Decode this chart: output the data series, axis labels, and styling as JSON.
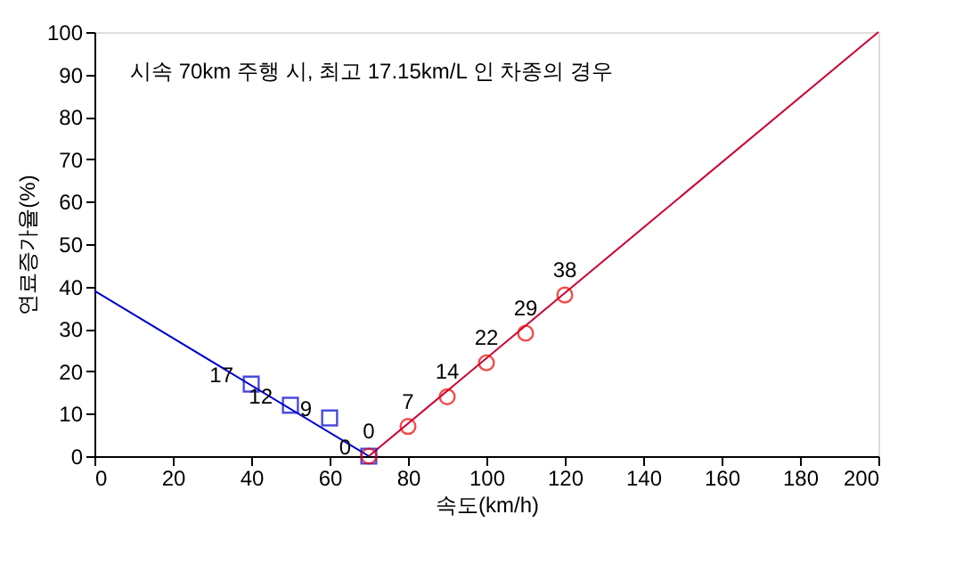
{
  "chart_data": {
    "type": "scatter",
    "xlabel": "속도(km/h)",
    "ylabel": "연료증가율(%)",
    "annotations": [
      "시속 70km 주행 시, 최고 17.15km/L 인 차종의 경우"
    ],
    "xlim": [
      0,
      200
    ],
    "ylim": [
      0,
      100
    ],
    "xticks": [
      0,
      20,
      40,
      60,
      80,
      100,
      120,
      140,
      160,
      180,
      200
    ],
    "yticks": [
      0,
      10,
      20,
      30,
      40,
      50,
      60,
      70,
      80,
      90,
      100
    ],
    "grid": false,
    "series": [
      {
        "type": "line",
        "color": "#0000cc",
        "x": [
          0,
          70
        ],
        "values": [
          39,
          0
        ],
        "marker": "none",
        "line_style": "solid"
      },
      {
        "type": "line",
        "color": "#cc0033",
        "x": [
          70,
          200
        ],
        "values": [
          0,
          100
        ],
        "marker": "none",
        "line_style": "solid"
      },
      {
        "color": "#0000cc",
        "x": [
          40,
          50,
          60,
          70
        ],
        "values": [
          17,
          12,
          9,
          0
        ],
        "value_labels": [
          "17",
          "12",
          "9",
          "0"
        ],
        "marker": "square"
      },
      {
        "color": "#ee0000",
        "x": [
          70,
          80,
          90,
          100,
          110,
          120
        ],
        "values": [
          0,
          7,
          14,
          22,
          29,
          38
        ],
        "value_labels": [
          "0",
          "7",
          "14",
          "22",
          "29",
          "38"
        ],
        "marker": "circle"
      }
    ]
  }
}
